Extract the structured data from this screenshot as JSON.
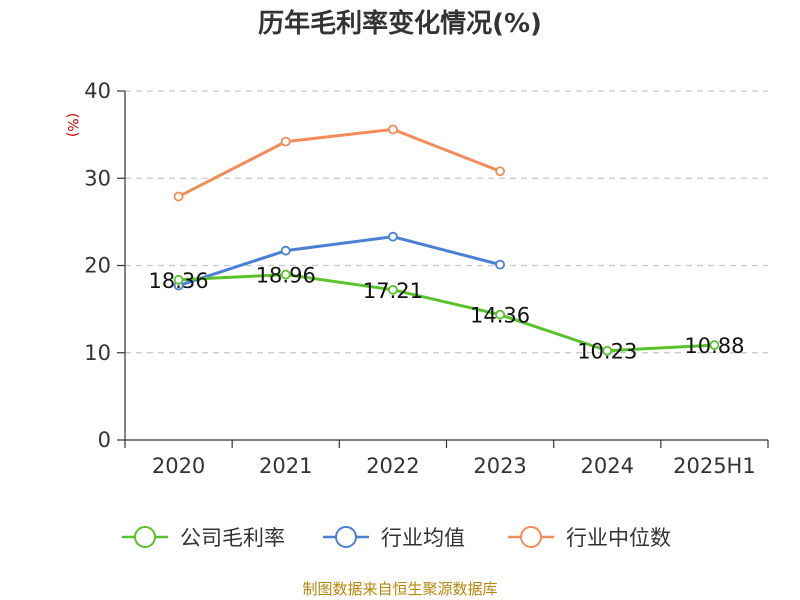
{
  "chart_data": {
    "type": "line",
    "title": "历年毛利率变化情况(%)",
    "ylabel": "(%)",
    "xlabel": "",
    "categories": [
      "2020",
      "2021",
      "2022",
      "2023",
      "2024",
      "2025H1"
    ],
    "ylim": [
      0,
      40
    ],
    "yticks": [
      0,
      10,
      20,
      30,
      40
    ],
    "grid": true,
    "legend_position": "bottom",
    "series": [
      {
        "name": "公司毛利率",
        "color": "#5ac22a",
        "labels": true,
        "values": [
          18.36,
          18.96,
          17.21,
          14.36,
          10.23,
          10.88
        ]
      },
      {
        "name": "行业均值",
        "color": "#4a7fd8",
        "labels": false,
        "values": [
          17.7,
          21.7,
          23.3,
          20.1,
          null,
          null
        ]
      },
      {
        "name": "行业中位数",
        "color": "#f28c5a",
        "labels": false,
        "values": [
          27.9,
          34.2,
          35.6,
          30.8,
          null,
          null
        ]
      }
    ],
    "source": "制图数据来自恒生聚源数据库"
  }
}
